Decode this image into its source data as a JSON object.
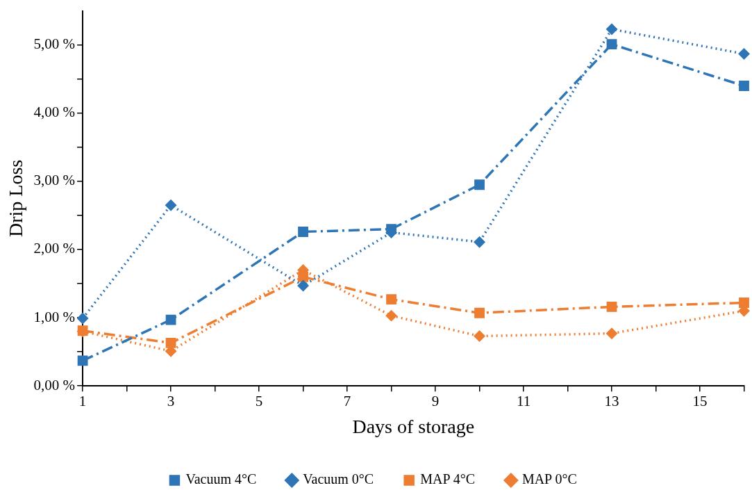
{
  "chart_data": {
    "type": "line",
    "xlabel": "Days of storage",
    "ylabel": "Drip Loss",
    "x": [
      1,
      3,
      6,
      8,
      10,
      13,
      16
    ],
    "series": [
      {
        "name": "Vacuum 4°C",
        "color": "#2e75b6",
        "line_style": "dashed",
        "marker": "square",
        "values": [
          0.37,
          0.97,
          2.26,
          2.3,
          2.95,
          5.01,
          4.4
        ]
      },
      {
        "name": "Vacuum 0°C",
        "color": "#2e75b6",
        "line_style": "dotted",
        "marker": "diamond",
        "values": [
          0.99,
          2.65,
          1.47,
          2.25,
          2.11,
          5.23,
          4.87
        ]
      },
      {
        "name": "MAP 4°C",
        "color": "#ed7d31",
        "line_style": "dashed",
        "marker": "square",
        "values": [
          0.81,
          0.63,
          1.6,
          1.27,
          1.07,
          1.16,
          1.22
        ]
      },
      {
        "name": "MAP 0°C",
        "color": "#ed7d31",
        "line_style": "dotted",
        "marker": "diamond",
        "values": [
          0.8,
          0.51,
          1.7,
          1.03,
          0.73,
          0.77,
          1.1
        ]
      }
    ],
    "xlim": [
      1,
      16
    ],
    "xticks": [
      1,
      {
        "value": 2,
        "label": null
      },
      3,
      {
        "value": 4,
        "label": null
      },
      5,
      {
        "value": 6,
        "label": null
      },
      7,
      {
        "value": 8,
        "label": null
      },
      9,
      {
        "value": 10,
        "label": null
      },
      11,
      {
        "value": 12,
        "label": null
      },
      13,
      {
        "value": 14,
        "label": null
      },
      15,
      {
        "value": 16,
        "label": null
      }
    ],
    "ylim": [
      0,
      5.5
    ],
    "yticks": [
      {
        "value": 0,
        "label": "0,00 %"
      },
      {
        "value": 0.5,
        "label": null
      },
      {
        "value": 1,
        "label": "1,00 %"
      },
      {
        "value": 1.5,
        "label": null
      },
      {
        "value": 2,
        "label": "2,00 %"
      },
      {
        "value": 2.5,
        "label": null
      },
      {
        "value": 3,
        "label": "3,00 %"
      },
      {
        "value": 3.5,
        "label": null
      },
      {
        "value": 4,
        "label": "4,00 %"
      },
      {
        "value": 4.5,
        "label": null
      },
      {
        "value": 5,
        "label": "5,00 %"
      }
    ],
    "grid": false,
    "legend": "bottom"
  }
}
